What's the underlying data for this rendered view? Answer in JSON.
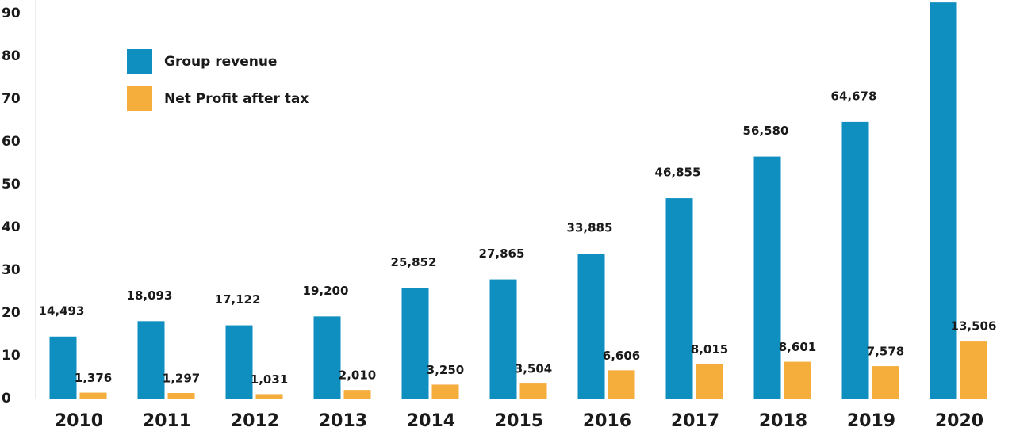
{
  "chart_data": {
    "type": "bar",
    "categories": [
      "2010",
      "2011",
      "2012",
      "2013",
      "2014",
      "2015",
      "2016",
      "2017",
      "2018",
      "2019",
      "2020"
    ],
    "series": [
      {
        "name": "Group revenue",
        "color": "#0f8fbf",
        "values": [
          14.493,
          18.093,
          17.122,
          19.2,
          25.852,
          27.865,
          33.885,
          46.855,
          56.58,
          64.678,
          92.6
        ],
        "value_labels": [
          "14,493",
          "18,093",
          "17,122",
          "19,200",
          "25,852",
          "27,865",
          "33,885",
          "46,855",
          "56,580",
          "64,678",
          null
        ]
      },
      {
        "name": "Net Profit after tax",
        "color": "#f5ad3c",
        "values": [
          1.376,
          1.297,
          1.031,
          2.01,
          3.25,
          3.504,
          6.606,
          8.015,
          8.601,
          7.578,
          13.506
        ],
        "value_labels": [
          "1,376",
          "1,297",
          "1,031",
          "2,010",
          "3,250",
          "3,504",
          "6,606",
          "8,015",
          "8,601",
          "7,578",
          "13,506"
        ]
      }
    ],
    "ylim": [
      0,
      93
    ],
    "yticks": [
      0,
      10,
      20,
      30,
      40,
      50,
      60,
      70,
      80,
      90
    ],
    "grid": false,
    "legend": "upper left"
  }
}
